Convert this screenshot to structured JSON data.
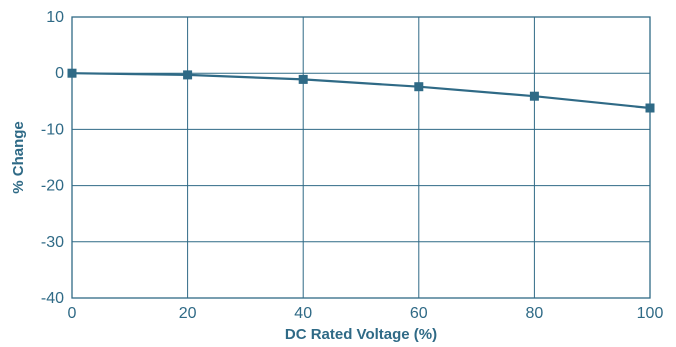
{
  "chart_data": {
    "type": "line",
    "title": "",
    "xlabel": "DC Rated Voltage (%)",
    "ylabel": "% Change",
    "xlim": [
      0,
      100
    ],
    "ylim": [
      -40,
      10
    ],
    "x_ticks": [
      0,
      20,
      40,
      60,
      80,
      100
    ],
    "y_ticks": [
      10,
      0,
      -10,
      -20,
      -30,
      -40
    ],
    "grid": true,
    "legend": "none",
    "series": [
      {
        "x": [
          0,
          20,
          40,
          60,
          80,
          100
        ],
        "y": [
          0,
          -0.3,
          -1.1,
          -2.4,
          -4.1,
          -6.2
        ],
        "marker": "square",
        "color": "#2f6a86"
      }
    ]
  },
  "colors": {
    "axis_text": "#2f6a86",
    "grid": "#2f6a86",
    "line": "#2f6a86"
  }
}
